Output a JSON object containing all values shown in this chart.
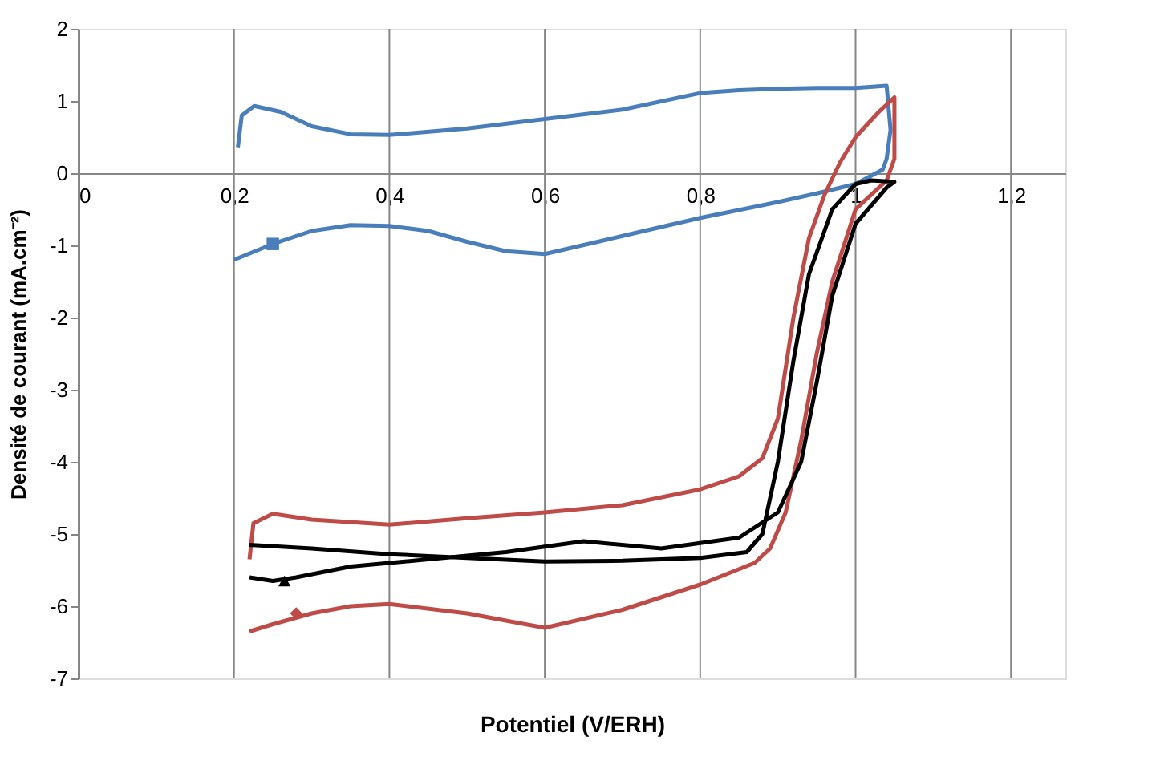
{
  "chart_data": {
    "type": "line",
    "xlabel": "Potentiel (V/ERH)",
    "ylabel": "Densité de courant  (mA.cm⁻²)",
    "xlim": [
      0,
      1.27
    ],
    "ylim": [
      -7,
      2
    ],
    "xticks": [
      0,
      {
        "value": 0.2,
        "label": "0,2"
      },
      {
        "value": 0.4,
        "label": "0,4"
      },
      {
        "value": 0.6,
        "label": "0,6"
      },
      {
        "value": 0.8,
        "label": "0,8"
      },
      1,
      {
        "value": 1.2,
        "label": "1,2"
      }
    ],
    "yticks": [
      -7,
      -6,
      -5,
      -4,
      -3,
      -2,
      -1,
      0,
      1,
      2
    ],
    "grid": "x",
    "line_style": "solid",
    "series": [
      {
        "color": "#4a7ebb",
        "x": [
          0.205,
          0.21,
          0.226,
          0.26,
          0.3,
          0.35,
          0.4,
          0.5,
          0.6,
          0.7,
          0.8,
          0.85,
          0.9,
          0.95,
          1.0,
          1.04,
          1.045,
          1.04,
          1.035,
          1.0,
          0.95,
          0.9,
          0.8,
          0.7,
          0.6,
          0.55,
          0.5,
          0.45,
          0.4,
          0.35,
          0.3,
          0.25,
          0.2
        ],
        "values": [
          0.36,
          0.8,
          0.93,
          0.85,
          0.65,
          0.54,
          0.53,
          0.62,
          0.75,
          0.88,
          1.11,
          1.15,
          1.17,
          1.18,
          1.18,
          1.21,
          0.6,
          0.2,
          0.05,
          -0.15,
          -0.28,
          -0.4,
          -0.62,
          -0.87,
          -1.12,
          -1.08,
          -0.95,
          -0.8,
          -0.73,
          -0.72,
          -0.8,
          -0.98,
          -1.2
        ]
      },
      {
        "color": "#be4b48",
        "x": [
          0.22,
          0.225,
          0.25,
          0.3,
          0.4,
          0.5,
          0.6,
          0.7,
          0.8,
          0.85,
          0.88,
          0.9,
          0.92,
          0.94,
          0.96,
          0.98,
          1.0,
          1.03,
          1.05,
          1.05,
          1.04,
          1.0,
          0.97,
          0.95,
          0.93,
          0.91,
          0.89,
          0.87,
          0.8,
          0.7,
          0.6,
          0.5,
          0.4,
          0.35,
          0.3,
          0.25,
          0.22
        ],
        "values": [
          -5.35,
          -4.85,
          -4.72,
          -4.8,
          -4.87,
          -4.78,
          -4.7,
          -4.6,
          -4.38,
          -4.2,
          -3.95,
          -3.4,
          -2.0,
          -0.9,
          -0.3,
          0.15,
          0.5,
          0.85,
          1.05,
          0.2,
          -0.1,
          -0.5,
          -1.5,
          -2.5,
          -3.7,
          -4.7,
          -5.2,
          -5.4,
          -5.7,
          -6.05,
          -6.3,
          -6.1,
          -5.97,
          -6.0,
          -6.1,
          -6.25,
          -6.35
        ]
      },
      {
        "color": "#000000",
        "x": [
          0.22,
          0.3,
          0.4,
          0.5,
          0.6,
          0.7,
          0.8,
          0.86,
          0.88,
          0.9,
          0.92,
          0.94,
          0.97,
          1.0,
          1.02,
          1.05,
          1.04,
          1.0,
          0.97,
          0.95,
          0.93,
          0.9,
          0.85,
          0.75,
          0.65,
          0.55,
          0.45,
          0.35,
          0.28,
          0.25,
          0.22
        ],
        "values": [
          -5.15,
          -5.2,
          -5.28,
          -5.33,
          -5.38,
          -5.37,
          -5.33,
          -5.25,
          -5.0,
          -4.0,
          -2.6,
          -1.4,
          -0.5,
          -0.15,
          -0.1,
          -0.12,
          -0.2,
          -0.7,
          -1.7,
          -2.9,
          -4.0,
          -4.7,
          -5.05,
          -5.2,
          -5.1,
          -5.25,
          -5.35,
          -5.45,
          -5.6,
          -5.65,
          -5.6
        ]
      },
      {
        "type": "scatter",
        "color": "#4a7ebb",
        "marker": "square",
        "x": [
          0.25
        ],
        "values": [
          -0.98
        ]
      },
      {
        "type": "scatter",
        "color": "#be4b48",
        "marker": "diamond",
        "x": [
          0.28
        ],
        "values": [
          -6.1
        ]
      },
      {
        "type": "scatter",
        "color": "#000000",
        "marker": "triangle",
        "x": [
          0.265
        ],
        "values": [
          -5.65
        ]
      }
    ]
  }
}
